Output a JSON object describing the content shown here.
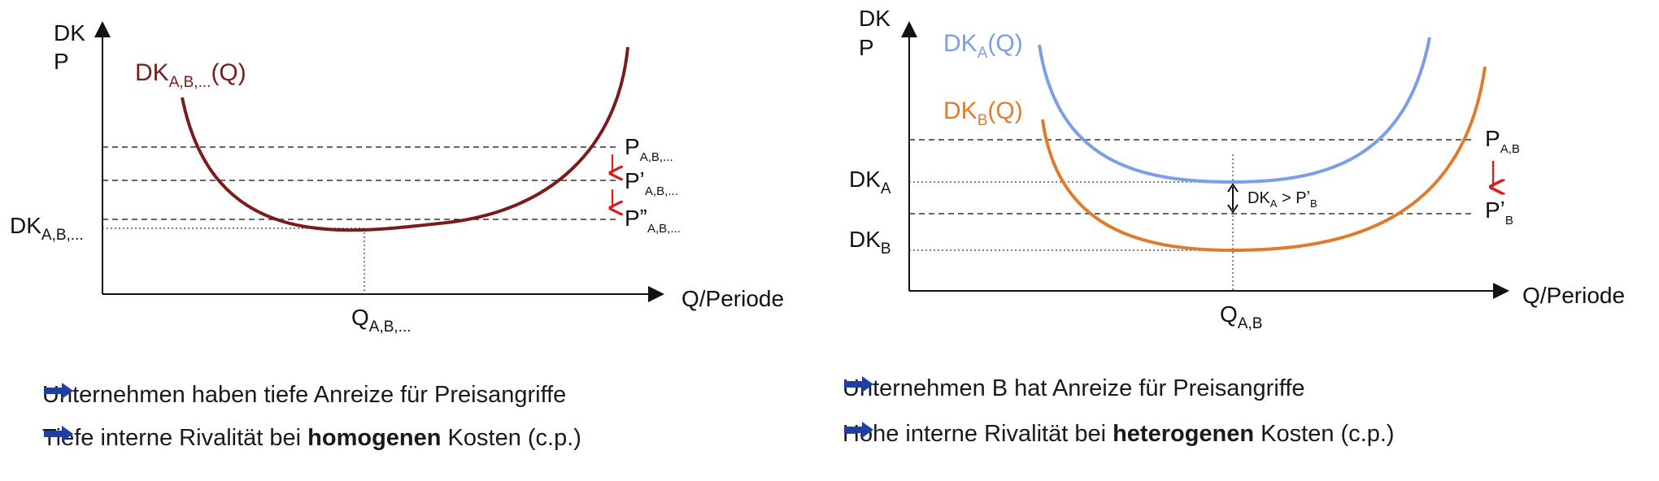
{
  "left": {
    "y_axis": [
      "DK",
      "P"
    ],
    "x_axis_label": "Q/Periode",
    "curve_label": {
      "main": "DK",
      "sub": "A,B,...",
      "tail": "(Q)"
    },
    "price_lines": [
      {
        "main": "P",
        "sub": "A,B,..."
      },
      {
        "main": "Pʼ",
        "sub": "A,B,..."
      },
      {
        "main": "Pˮ",
        "sub": "A,B,..."
      }
    ],
    "dk_min": {
      "main": "DK",
      "sub": "A,B,..."
    },
    "q_label": {
      "main": "Q",
      "sub": "A,B,..."
    },
    "bullets": [
      {
        "text": "Unternehmen haben tiefe Anreize für Preisangriffe"
      },
      {
        "pre": "Tiefe interne Rivalität bei ",
        "bold": "homogenen",
        "post": " Kosten (c.p.)"
      }
    ]
  },
  "right": {
    "y_axis": [
      "DK",
      "P"
    ],
    "x_axis_label": "Q/Periode",
    "curve_a_label": {
      "main": "DK",
      "sub": "A",
      "tail": "(Q)"
    },
    "curve_b_label": {
      "main": "DK",
      "sub": "B",
      "tail": "(Q)"
    },
    "price_a": {
      "main": "P",
      "sub": "A,B"
    },
    "price_b": {
      "main": "Pʼ",
      "sub": "B"
    },
    "dk_a": {
      "main": "DK",
      "sub": "A"
    },
    "dk_b": {
      "main": "DK",
      "sub": "B"
    },
    "comparison": {
      "main": "DK",
      "sub": "A",
      "mid": " > Pʼ",
      "sub2": "B"
    },
    "q_label": {
      "main": "Q",
      "sub": "A,B"
    },
    "bullets": [
      {
        "text": "Unternehmen B hat Anreize für Preisangriffe"
      },
      {
        "pre": "Hohe interne Rivalität bei ",
        "bold": "heterogenen",
        "post": " Kosten (c.p.)"
      }
    ]
  },
  "colors": {
    "dk_common": "#7a1c1c",
    "dk_a": "#7b9ee6",
    "dk_b": "#e07b2e",
    "arrow_red": "#d62020",
    "bullet_arrow": "#1f3fa3"
  }
}
